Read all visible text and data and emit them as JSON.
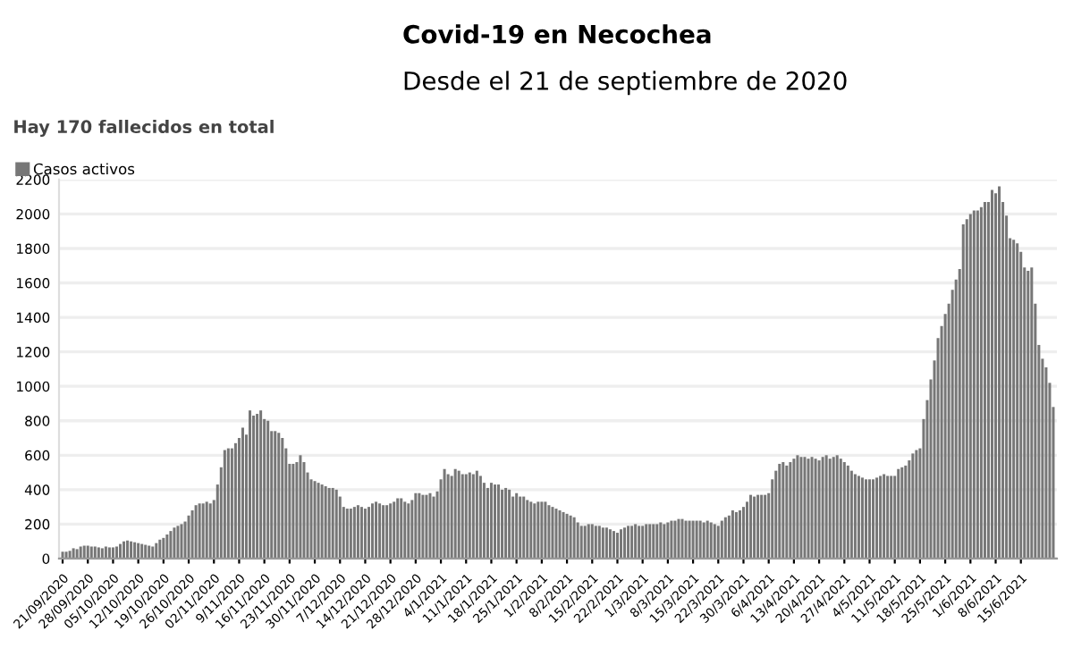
{
  "chart_data": {
    "type": "bar",
    "title": "Covid-19 en Necochea",
    "subtitle": "Desde el 21 de septiembre de 2020",
    "annotations": [
      "Hay 170 fallecidos en total"
    ],
    "categories": [
      "21/09/2020",
      null,
      null,
      null,
      null,
      null,
      null,
      "28/09/2020",
      null,
      null,
      null,
      null,
      null,
      null,
      "05/10/2020",
      null,
      null,
      null,
      null,
      null,
      null,
      "12/10/2020",
      null,
      null,
      null,
      null,
      null,
      null,
      "19/10/2020",
      null,
      null,
      null,
      null,
      null,
      null,
      "26/10/2020",
      null,
      null,
      null,
      null,
      null,
      null,
      "02/11/2020",
      null,
      null,
      null,
      null,
      null,
      null,
      "9/11/2020",
      null,
      null,
      null,
      null,
      null,
      null,
      "16/11/2020",
      null,
      null,
      null,
      null,
      null,
      null,
      "23/11/2020",
      null,
      null,
      null,
      null,
      null,
      null,
      "30/11/2020",
      null,
      null,
      null,
      null,
      null,
      null,
      "7/12/2020",
      null,
      null,
      null,
      null,
      null,
      null,
      "14/12/2020",
      null,
      null,
      null,
      null,
      null,
      null,
      "21/12/2020",
      null,
      null,
      null,
      null,
      null,
      null,
      "28/12/2020",
      null,
      null,
      null,
      null,
      null,
      null,
      "4/1/2021",
      null,
      null,
      null,
      null,
      null,
      null,
      "11/1/2021",
      null,
      null,
      null,
      null,
      null,
      null,
      "18/1/2021",
      null,
      null,
      null,
      null,
      null,
      null,
      "25/1/2021",
      null,
      null,
      null,
      null,
      null,
      null,
      "1/2/2021",
      null,
      null,
      null,
      null,
      null,
      null,
      "8/2/2021",
      null,
      null,
      null,
      null,
      null,
      null,
      "15/2/2021",
      null,
      null,
      null,
      null,
      null,
      null,
      "22/2/2021",
      null,
      null,
      null,
      null,
      null,
      null,
      "1/3/2021",
      null,
      null,
      null,
      null,
      null,
      null,
      "8/3/2021",
      null,
      null,
      null,
      null,
      null,
      null,
      "15/3/2021",
      null,
      null,
      null,
      null,
      null,
      null,
      "22/3/2021",
      null,
      null,
      null,
      null,
      null,
      null,
      "30/3/2021",
      null,
      null,
      null,
      null,
      null,
      null,
      "6/4/2021",
      null,
      null,
      null,
      null,
      null,
      null,
      "13/4/2021",
      null,
      null,
      null,
      null,
      null,
      null,
      "20/4/2021",
      null,
      null,
      null,
      null,
      null,
      null,
      "27/4/2021",
      null,
      null,
      null,
      null,
      null,
      null,
      "4/5/2021",
      null,
      null,
      null,
      null,
      null,
      null,
      "11/5/2021",
      null,
      null,
      null,
      null,
      null,
      null,
      "18/5/2021",
      null,
      null,
      null,
      null,
      null,
      null,
      "25/5/2021",
      null,
      null,
      null,
      null,
      null,
      null,
      "1/6/2021",
      null,
      null,
      null,
      null,
      null,
      null,
      "8/6/2021",
      null,
      null,
      null,
      null,
      null,
      null,
      "15/6/2021",
      null,
      null,
      null,
      null,
      null,
      null,
      null,
      null,
      null
    ],
    "series": [
      {
        "name": "Casos activos",
        "color": "#777777",
        "values": [
          40,
          40,
          45,
          60,
          55,
          70,
          75,
          75,
          70,
          70,
          65,
          60,
          70,
          65,
          65,
          70,
          85,
          100,
          105,
          100,
          95,
          90,
          85,
          80,
          75,
          70,
          90,
          110,
          120,
          140,
          160,
          180,
          190,
          200,
          215,
          250,
          280,
          310,
          320,
          320,
          330,
          320,
          340,
          430,
          530,
          630,
          640,
          640,
          670,
          700,
          760,
          720,
          860,
          830,
          840,
          860,
          810,
          800,
          740,
          740,
          730,
          700,
          640,
          550,
          550,
          560,
          600,
          560,
          500,
          460,
          450,
          440,
          430,
          420,
          410,
          410,
          400,
          360,
          300,
          290,
          290,
          300,
          310,
          300,
          290,
          300,
          320,
          330,
          320,
          310,
          310,
          320,
          330,
          350,
          350,
          330,
          320,
          340,
          380,
          380,
          370,
          370,
          380,
          360,
          390,
          460,
          520,
          490,
          480,
          520,
          510,
          490,
          490,
          500,
          490,
          510,
          480,
          440,
          410,
          440,
          430,
          430,
          400,
          410,
          400,
          360,
          380,
          360,
          360,
          340,
          330,
          320,
          330,
          330,
          330,
          310,
          300,
          290,
          280,
          270,
          260,
          250,
          240,
          210,
          190,
          190,
          200,
          200,
          190,
          190,
          180,
          180,
          170,
          160,
          150,
          170,
          180,
          190,
          190,
          200,
          190,
          190,
          200,
          200,
          200,
          200,
          210,
          200,
          210,
          220,
          220,
          230,
          230,
          220,
          220,
          220,
          220,
          220,
          210,
          220,
          210,
          200,
          190,
          220,
          240,
          250,
          280,
          270,
          280,
          300,
          330,
          370,
          360,
          370,
          370,
          370,
          380,
          460,
          510,
          550,
          560,
          540,
          560,
          580,
          600,
          590,
          590,
          580,
          590,
          580,
          570,
          590,
          600,
          580,
          590,
          600,
          580,
          560,
          540,
          510,
          490,
          480,
          470,
          460,
          460,
          460,
          470,
          480,
          490,
          480,
          480,
          480,
          520,
          530,
          540,
          570,
          610,
          630,
          640,
          810,
          920,
          1040,
          1150,
          1280,
          1350,
          1420,
          1480,
          1560,
          1620,
          1680,
          1940,
          1970,
          2000,
          2020,
          2020,
          2040,
          2070,
          2070,
          2140,
          2120,
          2160,
          2070,
          1990,
          1860,
          1850,
          1830,
          1780,
          1690,
          1670,
          1690,
          1480,
          1240,
          1160,
          1110,
          1020,
          880
        ]
      }
    ],
    "ylim": [
      0,
      2200
    ],
    "yticks": [
      0,
      200,
      400,
      600,
      800,
      1000,
      1200,
      1400,
      1600,
      1800,
      2000,
      2200
    ],
    "grid": "y",
    "legend": "top left"
  }
}
